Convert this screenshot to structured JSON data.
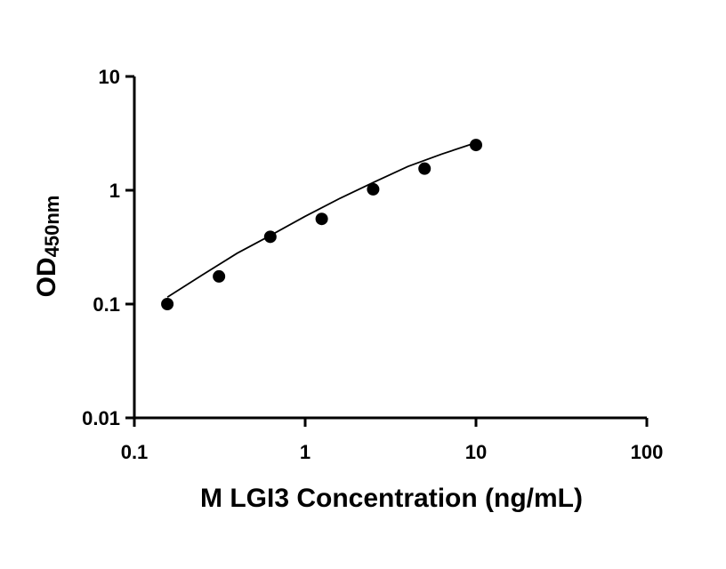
{
  "chart_data": {
    "type": "scatter",
    "title": "",
    "xlabel": "M LGI3 Concentration (ng/mL)",
    "ylabel_main": "OD",
    "ylabel_sub": "450nm",
    "x_scale": "log",
    "y_scale": "log",
    "xlim": [
      0.1,
      100
    ],
    "ylim": [
      0.01,
      10
    ],
    "x_ticks": [
      0.1,
      1,
      10,
      100
    ],
    "x_tick_labels": [
      "0.1",
      "1",
      "10",
      "100"
    ],
    "y_ticks": [
      0.01,
      0.1,
      1,
      10
    ],
    "y_tick_labels": [
      "0.01",
      "0.1",
      "1",
      "10"
    ],
    "grid": false,
    "legend": "none",
    "series": [
      {
        "x": [
          0.156,
          0.313,
          0.625,
          1.25,
          2.5,
          5,
          10
        ],
        "y": [
          0.1,
          0.175,
          0.39,
          0.56,
          1.02,
          1.55,
          2.5
        ]
      }
    ],
    "fit_curve": {
      "x": [
        0.156,
        0.25,
        0.4,
        0.625,
        1.0,
        1.6,
        2.5,
        4.0,
        6.3,
        10
      ],
      "y": [
        0.115,
        0.18,
        0.28,
        0.4,
        0.59,
        0.85,
        1.17,
        1.62,
        2.08,
        2.62
      ]
    }
  }
}
